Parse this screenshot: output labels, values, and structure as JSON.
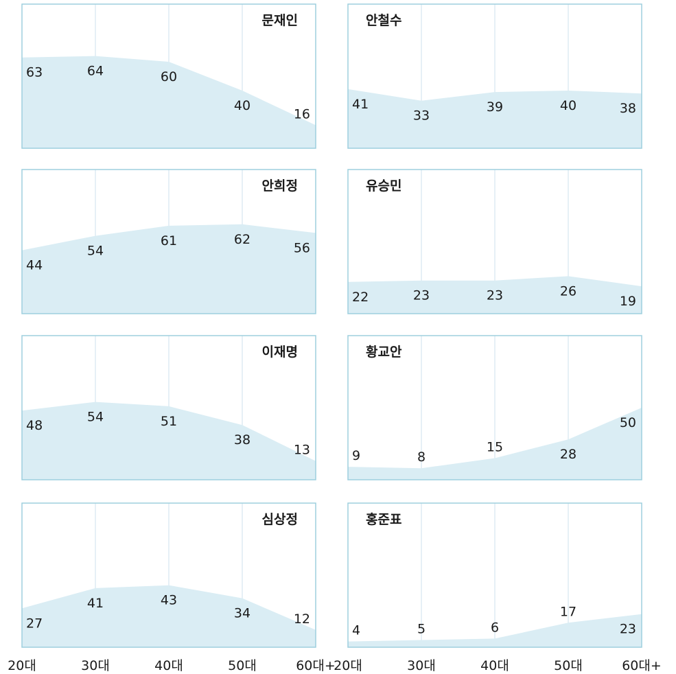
{
  "chart_data": {
    "type": "area",
    "categories": [
      "20대",
      "30대",
      "40대",
      "50대",
      "60대+"
    ],
    "ylim": [
      0,
      100
    ],
    "grid": true,
    "colors": {
      "fill": "#daedf4",
      "border": "#9dcfde",
      "grid": "#d6e6ef"
    },
    "panels": [
      {
        "title": "문재인",
        "values": [
          63,
          64,
          60,
          40,
          16
        ],
        "title_align": "right"
      },
      {
        "title": "안철수",
        "values": [
          41,
          33,
          39,
          40,
          38
        ],
        "title_align": "left"
      },
      {
        "title": "안희정",
        "values": [
          44,
          54,
          61,
          62,
          56
        ],
        "title_align": "right"
      },
      {
        "title": "유승민",
        "values": [
          22,
          23,
          23,
          26,
          19
        ],
        "title_align": "left"
      },
      {
        "title": "이재명",
        "values": [
          48,
          54,
          51,
          38,
          13
        ],
        "title_align": "right"
      },
      {
        "title": "황교안",
        "values": [
          9,
          8,
          15,
          28,
          50
        ],
        "title_align": "left"
      },
      {
        "title": "심상정",
        "values": [
          27,
          41,
          43,
          34,
          12
        ],
        "title_align": "right"
      },
      {
        "title": "홍준표",
        "values": [
          4,
          5,
          6,
          17,
          23
        ],
        "title_align": "left"
      }
    ]
  }
}
